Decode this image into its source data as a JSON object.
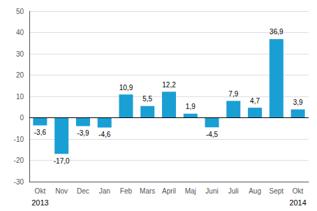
{
  "chart_data": {
    "type": "bar",
    "categories": [
      "Okt",
      "Nov",
      "Dec",
      "Jan",
      "Feb",
      "Mars",
      "April",
      "Maj",
      "Juni",
      "Juli",
      "Aug",
      "Sept",
      "Okt"
    ],
    "values": [
      -3.6,
      -17.0,
      -3.9,
      -4.6,
      10.9,
      5.5,
      12.2,
      1.9,
      -4.5,
      7.9,
      4.7,
      36.9,
      3.9
    ],
    "value_labels": [
      "-3,6",
      "-17,0",
      "-3,9",
      "-4,6",
      "10,9",
      "5,5",
      "12,2",
      "1,9",
      "-4,5",
      "7,9",
      "4,7",
      "36,9",
      "3,9"
    ],
    "data_labels": true,
    "color": "#1a9fd4",
    "ylim": [
      -30,
      50
    ],
    "yticks": [
      -30,
      -20,
      -10,
      0,
      10,
      20,
      30,
      40,
      50
    ],
    "grid": true,
    "annotations": [
      {
        "text": "2013",
        "index": 0
      },
      {
        "text": "2014",
        "index": 12
      }
    ]
  }
}
